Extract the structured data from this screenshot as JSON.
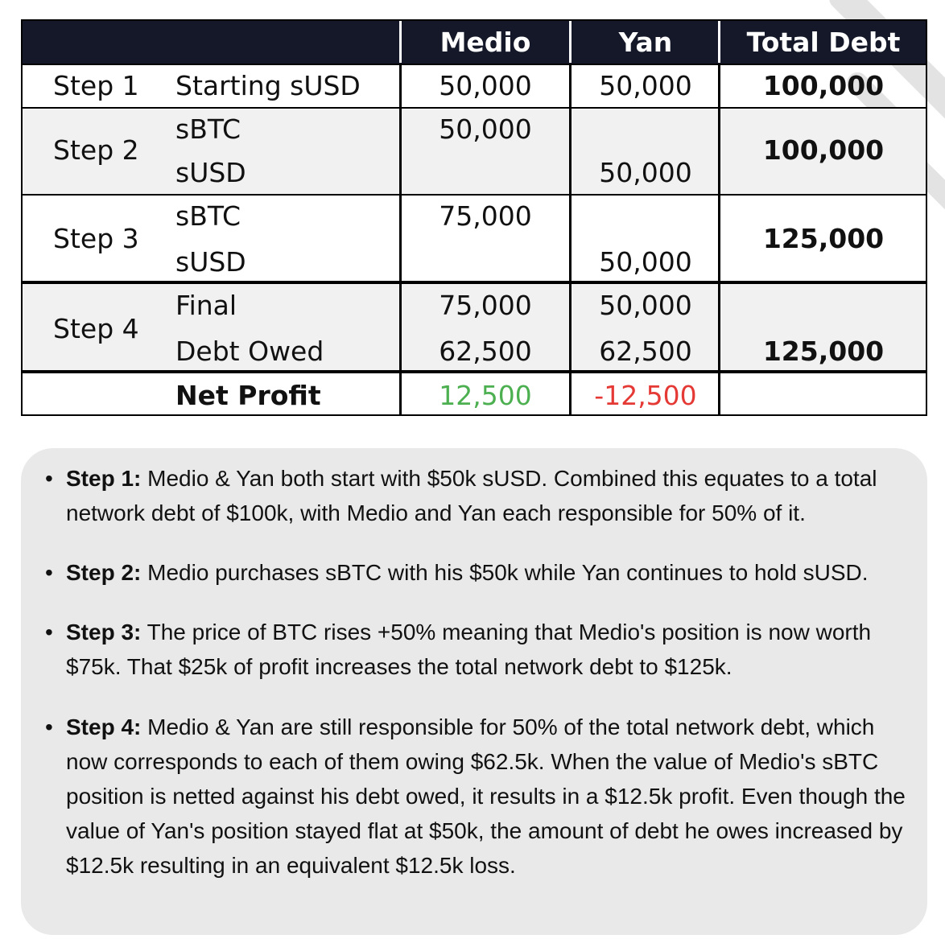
{
  "table": {
    "headers": [
      "Medio",
      "Yan",
      "Total Debt"
    ],
    "rows": [
      {
        "step": "Step 1",
        "labels": [
          "Starting sUSD"
        ],
        "medio": [
          "50,000"
        ],
        "yan": [
          "50,000"
        ],
        "total": "100,000"
      },
      {
        "step": "Step 2",
        "labels": [
          "sBTC",
          "sUSD"
        ],
        "medio": [
          "50,000",
          ""
        ],
        "yan": [
          "",
          "50,000"
        ],
        "total": "100,000"
      },
      {
        "step": "Step 3",
        "labels": [
          "sBTC",
          "sUSD"
        ],
        "medio": [
          "75,000",
          ""
        ],
        "yan": [
          "",
          "50,000"
        ],
        "total": "125,000"
      },
      {
        "step": "Step 4",
        "labels": [
          "Final",
          "Debt Owed"
        ],
        "medio": [
          "75,000",
          "62,500"
        ],
        "yan": [
          "50,000",
          "62,500"
        ],
        "total": "125,000"
      }
    ],
    "net_profit": {
      "label": "Net Profit",
      "medio": "12,500",
      "yan": "-12,500"
    },
    "colors": {
      "header_bg": "#141828",
      "profit": "#4caf50",
      "loss": "#e53935",
      "band": "#f1f1f1"
    }
  },
  "notes": [
    {
      "title": "Step 1:",
      "text": " Medio & Yan both start with $50k sUSD. Combined this equates to a total network debt of $100k, with Medio and Yan each responsible for 50% of it."
    },
    {
      "title": "Step 2:",
      "text": " Medio purchases sBTC with his $50k while Yan continues to hold sUSD."
    },
    {
      "title": "Step 3:",
      "text": " The price of BTC rises +50% meaning that Medio's position is now worth $75k. That $25k of profit increases the total network debt to $125k."
    },
    {
      "title": "Step 4:",
      "text": " Medio & Yan are still responsible for 50% of the total network debt, which now corresponds to each of them owing $62.5k. When the value of Medio's sBTC position is netted against his debt owed, it results in a $12.5k profit. Even though the value of Yan's position stayed flat at $50k, the amount of debt he owes increased by $12.5k resulting in an equivalent $12.5k loss."
    }
  ]
}
